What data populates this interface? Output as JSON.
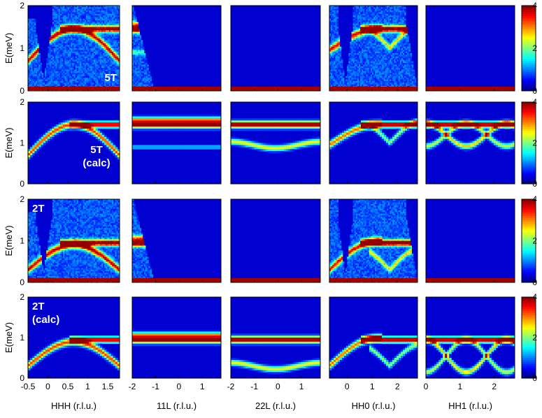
{
  "chart_data": {
    "type": "heatmap",
    "description_rows": [
      "5T",
      "5T (calc)",
      "2T",
      "2T (calc)"
    ],
    "ylabel": "E(meV)",
    "ylim": [
      0,
      2
    ],
    "y_ticks": [
      "0",
      "1",
      "2"
    ],
    "colorbar": {
      "ticks": [
        "0",
        "2",
        "4"
      ],
      "range": [
        0,
        4
      ]
    },
    "rows": [
      {
        "id": "5T",
        "label_lines": [
          "5T"
        ],
        "field_T": 5,
        "calc": false,
        "label_pos": "bottom-right"
      },
      {
        "id": "5T-calc",
        "label_lines": [
          "5T",
          "(calc)"
        ],
        "field_T": 5,
        "calc": true,
        "label_pos": "bottom-left"
      },
      {
        "id": "2T",
        "label_lines": [
          "2T"
        ],
        "field_T": 2,
        "calc": false,
        "label_pos": "top-left"
      },
      {
        "id": "2T-calc",
        "label_lines": [
          "2T",
          "(calc)"
        ],
        "field_T": 2,
        "calc": true,
        "label_pos": "top-left"
      }
    ],
    "columns": [
      {
        "id": "HHH",
        "xlabel": "HHH (r.l.u.)",
        "xlim": [
          -0.5,
          1.8
        ],
        "ticks": [
          -0.5,
          0,
          0.5,
          1,
          1.5
        ],
        "tick_labels": [
          "-0.5",
          "0",
          "0.5",
          "1",
          "1.5"
        ]
      },
      {
        "id": "11L",
        "xlabel": "11L (r.l.u.)",
        "xlim": [
          -2,
          1.8
        ],
        "ticks": [
          -2,
          -1,
          0,
          1
        ],
        "tick_labels": [
          "-2",
          "-1",
          "0",
          "1"
        ]
      },
      {
        "id": "22L",
        "xlabel": "22L (r.l.u.)",
        "xlim": [
          -2,
          1.8
        ],
        "ticks": [
          -2,
          -1,
          0,
          1
        ],
        "tick_labels": [
          "-2",
          "-1",
          "0",
          "1"
        ]
      },
      {
        "id": "HH0",
        "xlabel": "HH0 (r.l.u.)",
        "xlim": [
          -0.7,
          2.8
        ],
        "ticks": [
          0,
          1,
          2
        ],
        "tick_labels": [
          "0",
          "1",
          "2"
        ]
      },
      {
        "id": "HH1",
        "xlabel": "HH1 (r.l.u.)",
        "xlim": [
          0,
          2.6
        ],
        "ticks": [
          0,
          1,
          2
        ],
        "tick_labels": [
          "0",
          "1",
          "2"
        ]
      }
    ]
  }
}
